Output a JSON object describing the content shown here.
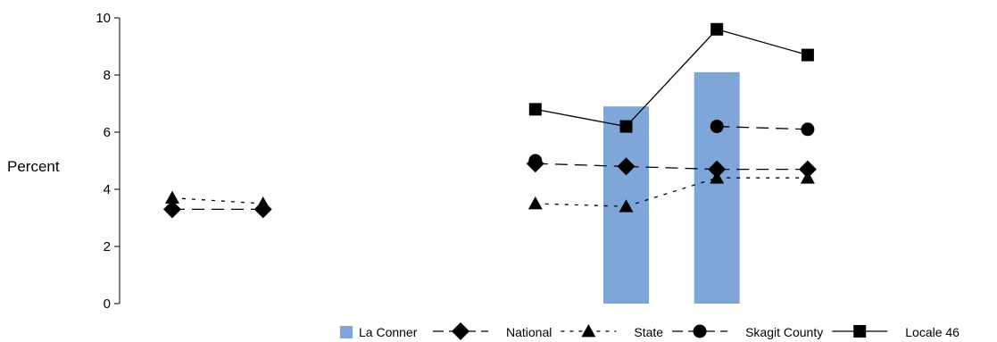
{
  "chart_data": {
    "type": "bar",
    "title": "",
    "xlabel": "",
    "ylabel": "Percent",
    "ylim": [
      0,
      10
    ],
    "yticks": [
      "0",
      "2",
      "4",
      "6",
      "8",
      "10"
    ],
    "grid": false,
    "legend_position": "bottom-right",
    "x_slots": 8,
    "bar_series": {
      "name": "La Conner",
      "color": "#7ea6d8",
      "values": [
        null,
        null,
        null,
        null,
        null,
        6.9,
        8.1,
        null
      ]
    },
    "line_series": [
      {
        "name": "National",
        "marker": "diamond",
        "dash": "long-dash",
        "values": [
          3.3,
          3.3,
          null,
          null,
          4.9,
          4.8,
          4.7,
          4.7
        ]
      },
      {
        "name": "State",
        "marker": "triangle",
        "dash": "short-dash",
        "values": [
          3.7,
          3.5,
          null,
          null,
          3.5,
          3.4,
          4.4,
          4.4
        ]
      },
      {
        "name": "Skagit County",
        "marker": "circle",
        "dash": "long-dash",
        "values": [
          null,
          null,
          null,
          null,
          5.0,
          null,
          6.2,
          6.1
        ]
      },
      {
        "name": "Locale 46",
        "marker": "square",
        "dash": "solid",
        "values": [
          null,
          null,
          null,
          null,
          6.8,
          6.2,
          9.6,
          8.7
        ]
      }
    ]
  }
}
